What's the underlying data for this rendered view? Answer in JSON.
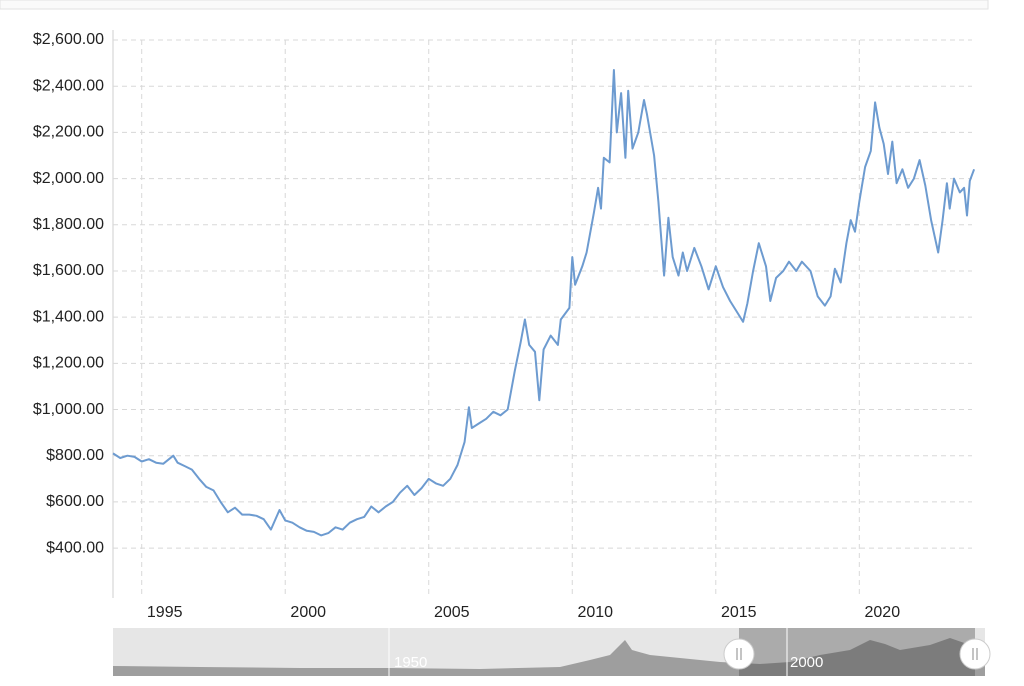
{
  "chart_data": {
    "type": "line",
    "color": "#6d9bd0",
    "grid": true,
    "x": [
      1994.0,
      1994.25,
      1994.5,
      1994.75,
      1995.0,
      1995.25,
      1995.5,
      1995.75,
      1996.1,
      1996.25,
      1996.5,
      1996.75,
      1997.0,
      1997.25,
      1997.5,
      1997.75,
      1998.0,
      1998.25,
      1998.5,
      1998.75,
      1999.0,
      1999.25,
      1999.5,
      1999.8,
      2000.0,
      2000.25,
      2000.5,
      2000.75,
      2001.0,
      2001.25,
      2001.5,
      2001.75,
      2002.0,
      2002.25,
      2002.5,
      2002.75,
      2003.0,
      2003.25,
      2003.5,
      2003.75,
      2004.0,
      2004.25,
      2004.5,
      2004.75,
      2005.0,
      2005.25,
      2005.5,
      2005.75,
      2006.0,
      2006.25,
      2006.4,
      2006.5,
      2006.75,
      2007.0,
      2007.25,
      2007.5,
      2007.75,
      2008.0,
      2008.2,
      2008.35,
      2008.5,
      2008.7,
      2008.85,
      2009.0,
      2009.25,
      2009.5,
      2009.6,
      2009.9,
      2010.0,
      2010.1,
      2010.35,
      2010.5,
      2010.75,
      2010.9,
      2011.0,
      2011.1,
      2011.3,
      2011.45,
      2011.55,
      2011.7,
      2011.85,
      2011.95,
      2012.1,
      2012.3,
      2012.5,
      2012.6,
      2012.85,
      2013.0,
      2013.2,
      2013.35,
      2013.5,
      2013.7,
      2013.85,
      2014.0,
      2014.25,
      2014.5,
      2014.75,
      2015.0,
      2015.25,
      2015.5,
      2015.75,
      2015.95,
      2016.1,
      2016.3,
      2016.5,
      2016.75,
      2016.9,
      2017.1,
      2017.35,
      2017.55,
      2017.8,
      2018.0,
      2018.3,
      2018.55,
      2018.8,
      2019.0,
      2019.15,
      2019.35,
      2019.55,
      2019.7,
      2019.85,
      2020.0,
      2020.2,
      2020.4,
      2020.55,
      2020.7,
      2020.85,
      2021.0,
      2021.15,
      2021.3,
      2021.5,
      2021.7,
      2021.9,
      2022.1,
      2022.3,
      2022.5,
      2022.75,
      2022.9,
      2023.05,
      2023.15,
      2023.3,
      2023.5,
      2023.65,
      2023.75,
      2023.85,
      2024.0
    ],
    "values": [
      810,
      790,
      800,
      795,
      775,
      785,
      770,
      765,
      800,
      770,
      755,
      740,
      700,
      665,
      650,
      600,
      555,
      575,
      545,
      545,
      540,
      525,
      480,
      565,
      520,
      510,
      490,
      475,
      470,
      455,
      465,
      490,
      480,
      510,
      525,
      535,
      580,
      555,
      580,
      600,
      640,
      670,
      630,
      660,
      700,
      680,
      670,
      700,
      760,
      860,
      1010,
      920,
      940,
      960,
      990,
      975,
      1000,
      1170,
      1290,
      1390,
      1280,
      1250,
      1040,
      1260,
      1320,
      1280,
      1390,
      1440,
      1660,
      1540,
      1620,
      1680,
      1850,
      1960,
      1870,
      2090,
      2070,
      2470,
      2200,
      2370,
      2090,
      2380,
      2130,
      2200,
      2340,
      2280,
      2100,
      1900,
      1580,
      1830,
      1660,
      1580,
      1680,
      1600,
      1700,
      1620,
      1520,
      1620,
      1530,
      1470,
      1420,
      1380,
      1460,
      1600,
      1720,
      1620,
      1470,
      1570,
      1600,
      1640,
      1600,
      1640,
      1600,
      1490,
      1450,
      1490,
      1610,
      1550,
      1720,
      1820,
      1770,
      1900,
      2050,
      2120,
      2330,
      2220,
      2150,
      2020,
      2160,
      1980,
      2040,
      1960,
      2000,
      2080,
      1970,
      1820,
      1680,
      1820,
      1980,
      1870,
      2000,
      1940,
      1960,
      1840,
      1990,
      2040
    ],
    "xlim": [
      1994.0,
      2024.1
    ],
    "xticks": [
      1995,
      2000,
      2005,
      2010,
      2015,
      2020
    ],
    "ylim": [
      184,
      2600
    ],
    "yticks": [
      {
        "value": 400,
        "label": "$400.00"
      },
      {
        "value": 600,
        "label": "$600.00"
      },
      {
        "value": 800,
        "label": "$800.00"
      },
      {
        "value": 1000,
        "label": "$1,000.00"
      },
      {
        "value": 1200,
        "label": "$1,200.00"
      },
      {
        "value": 1400,
        "label": "$1,400.00"
      },
      {
        "value": 1600,
        "label": "$1,600.00"
      },
      {
        "value": 1800,
        "label": "$1,800.00"
      },
      {
        "value": 2000,
        "label": "$2,000.00"
      },
      {
        "value": 2200,
        "label": "$2,200.00"
      },
      {
        "value": 2400,
        "label": "$2,400.00"
      },
      {
        "value": 2600,
        "label": "$2,600.00"
      }
    ]
  },
  "navigator": {
    "labels": [
      "1950",
      "2000"
    ]
  }
}
